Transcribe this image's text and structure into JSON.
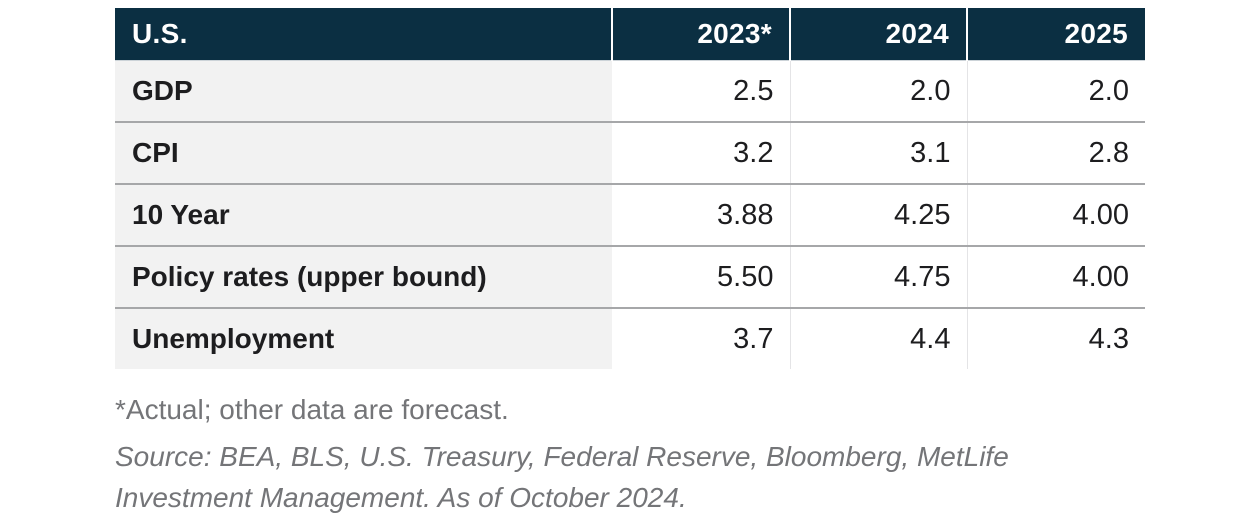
{
  "colors": {
    "header_bg": "#0b2f42",
    "header_text": "#ffffff",
    "row_label_bg": "#f2f2f2",
    "text_dark": "#1d1d1f",
    "row_separator": "#a6a7a9",
    "header_underline": "#ccd3d8",
    "column_separator": "#e4e4e6",
    "footnote_text": "#747578",
    "page_bg": "#ffffff"
  },
  "chart_data": {
    "type": "table",
    "title": "U.S. economic forecast table",
    "columns": [
      "U.S.",
      "2023*",
      "2024",
      "2025"
    ],
    "rows": [
      {
        "label": "GDP",
        "values": [
          "2.5",
          "2.0",
          "2.0"
        ]
      },
      {
        "label": "CPI",
        "values": [
          "3.2",
          "3.1",
          "2.8"
        ]
      },
      {
        "label": "10 Year",
        "values": [
          "3.88",
          "4.25",
          "4.00"
        ]
      },
      {
        "label": "Policy rates (upper bound)",
        "values": [
          "5.50",
          "4.75",
          "4.00"
        ]
      },
      {
        "label": "Unemployment",
        "values": [
          "3.7",
          "4.4",
          "4.3"
        ]
      }
    ],
    "footnote": "*Actual; other data are forecast.",
    "source": "Source: BEA, BLS, U.S. Treasury, Federal Reserve, Bloomberg, MetLife Investment Management. As of October 2024.",
    "source_lines": [
      "Source: BEA, BLS, U.S. Treasury, Federal Reserve, Bloomberg, MetLife",
      "Investment Management. As of October 2024."
    ],
    "layout_hints": {
      "header_align": "values right, region label left",
      "value_align": "right",
      "grid": "horizontal separators between rows, light vertical separators between year columns"
    }
  }
}
